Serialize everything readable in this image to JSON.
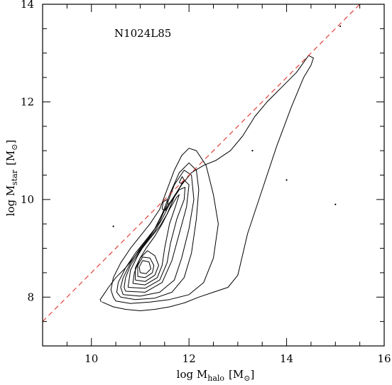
{
  "chart_data": {
    "type": "scatter",
    "plot_style": "contour",
    "annotation": "N1024L85",
    "xlabel": {
      "main": "log M",
      "sub": "halo",
      "unit": "[M",
      "unit_sub": "⊙",
      "unit_close": "]"
    },
    "ylabel": {
      "main": "log M",
      "sub": "star",
      "unit": "[M",
      "unit_sub": "⊙",
      "unit_close": "]"
    },
    "xlim": [
      9,
      16
    ],
    "ylim": [
      7,
      14
    ],
    "x_major_ticks": [
      10,
      12,
      14,
      16
    ],
    "y_major_ticks": [
      8,
      10,
      12,
      14
    ],
    "x_tick_labels": [
      "10",
      "12",
      "14",
      "16"
    ],
    "y_tick_labels": [
      "8",
      "10",
      "12",
      "14"
    ],
    "x_minor_step": 0.5,
    "y_minor_step": 0.5,
    "grid": false,
    "reference_line": {
      "style": "dashed",
      "color": "#e0312a",
      "x": [
        9.0,
        15.5
      ],
      "y": [
        7.5,
        14.0
      ]
    },
    "contours": [
      {
        "level": 1,
        "x": [
          10.22,
          10.45,
          10.7,
          11.0,
          11.3,
          11.6,
          11.9,
          12.2,
          12.5,
          12.8,
          13.0,
          13.2,
          13.5,
          13.8,
          14.1,
          14.35,
          14.5,
          14.55,
          14.45,
          14.2,
          13.9,
          13.6,
          13.35,
          13.1,
          12.85,
          12.55,
          12.3,
          12.05,
          11.85,
          11.65,
          11.45,
          11.3,
          11.1,
          10.9,
          10.7,
          10.5,
          10.35,
          10.25,
          10.18,
          10.2
        ],
        "y": [
          7.9,
          7.8,
          7.75,
          7.72,
          7.75,
          7.8,
          7.88,
          8.0,
          8.1,
          8.2,
          8.45,
          9.3,
          10.2,
          11.1,
          11.9,
          12.5,
          12.75,
          12.9,
          12.95,
          12.6,
          12.3,
          12.0,
          11.7,
          11.3,
          11.0,
          10.8,
          10.7,
          10.55,
          10.3,
          10.0,
          9.7,
          9.4,
          9.1,
          8.85,
          8.6,
          8.4,
          8.2,
          8.05,
          7.95,
          7.9
        ]
      },
      {
        "level": 2,
        "x": [
          10.5,
          10.8,
          11.2,
          11.6,
          12.0,
          12.3,
          12.5,
          12.6,
          12.5,
          12.35,
          12.15,
          12.0,
          11.85,
          11.7,
          11.55,
          11.4,
          11.2,
          11.0,
          10.8,
          10.6,
          10.45,
          10.4,
          10.45,
          10.5
        ],
        "y": [
          7.92,
          7.87,
          7.9,
          7.95,
          8.05,
          8.3,
          8.8,
          9.5,
          10.1,
          10.7,
          11.0,
          11.05,
          10.9,
          10.6,
          10.2,
          9.8,
          9.5,
          9.25,
          9.0,
          8.7,
          8.4,
          8.15,
          8.0,
          7.92
        ]
      },
      {
        "level": 3,
        "x": [
          10.6,
          10.9,
          11.3,
          11.65,
          11.9,
          12.05,
          12.15,
          12.2,
          12.15,
          12.0,
          11.8,
          11.6,
          11.45,
          11.3,
          11.1,
          10.9,
          10.7,
          10.55,
          10.52,
          10.6
        ],
        "y": [
          8.0,
          7.95,
          7.98,
          8.1,
          8.4,
          8.9,
          9.6,
          10.2,
          10.6,
          10.75,
          10.55,
          10.1,
          9.7,
          9.4,
          9.15,
          8.9,
          8.6,
          8.3,
          8.1,
          8.0
        ]
      },
      {
        "level": 4,
        "x": [
          10.65,
          11.0,
          11.4,
          11.7,
          11.85,
          12.0,
          12.1,
          12.05,
          11.9,
          11.7,
          11.55,
          11.4,
          11.2,
          11.0,
          10.8,
          10.65,
          10.6,
          10.65
        ],
        "y": [
          8.05,
          8.02,
          8.1,
          8.35,
          8.8,
          9.4,
          10.0,
          10.5,
          10.6,
          10.3,
          9.9,
          9.55,
          9.25,
          9.0,
          8.7,
          8.4,
          8.2,
          8.05
        ]
      },
      {
        "level": 5,
        "x": [
          10.7,
          11.1,
          11.45,
          11.65,
          11.8,
          11.95,
          12.0,
          11.9,
          11.72,
          11.55,
          11.4,
          11.2,
          11.0,
          10.8,
          10.7,
          10.67,
          10.7
        ],
        "y": [
          8.12,
          8.1,
          8.3,
          8.75,
          9.3,
          9.85,
          10.3,
          10.4,
          10.1,
          9.7,
          9.45,
          9.2,
          8.95,
          8.65,
          8.4,
          8.2,
          8.12
        ]
      },
      {
        "level": 6,
        "x": [
          10.75,
          11.1,
          11.4,
          11.55,
          11.62,
          11.75,
          11.9,
          11.92,
          11.8,
          11.6,
          11.45,
          11.3,
          11.1,
          10.95,
          10.8,
          10.75
        ],
        "y": [
          8.2,
          8.18,
          8.35,
          8.7,
          9.1,
          9.6,
          10.0,
          10.25,
          10.2,
          9.9,
          9.6,
          9.35,
          9.1,
          8.85,
          8.55,
          8.2
        ]
      },
      {
        "level": 7,
        "x": [
          10.85,
          11.1,
          11.35,
          11.45,
          11.5,
          11.6,
          11.72,
          11.8,
          11.75,
          11.6,
          11.45,
          11.3,
          11.12,
          11.0,
          10.88,
          10.85
        ],
        "y": [
          8.28,
          8.25,
          8.4,
          8.65,
          9.0,
          9.5,
          9.85,
          10.1,
          10.05,
          9.8,
          9.5,
          9.25,
          9.0,
          8.8,
          8.5,
          8.28
        ]
      },
      {
        "level": 8,
        "x": [
          10.9,
          11.1,
          11.3,
          11.38,
          11.3,
          11.15,
          11.0,
          10.9,
          10.9
        ],
        "y": [
          8.35,
          8.32,
          8.45,
          8.65,
          8.85,
          8.95,
          8.8,
          8.6,
          8.35
        ]
      },
      {
        "level": 9,
        "x": [
          10.95,
          11.1,
          11.25,
          11.28,
          11.2,
          11.05,
          10.95,
          10.95
        ],
        "y": [
          8.42,
          8.4,
          8.5,
          8.65,
          8.8,
          8.82,
          8.65,
          8.42
        ]
      },
      {
        "level": 10,
        "x": [
          11.0,
          11.12,
          11.22,
          11.18,
          11.05,
          10.98,
          11.0
        ],
        "y": [
          8.5,
          8.48,
          8.58,
          8.72,
          8.75,
          8.62,
          8.5
        ]
      },
      {
        "level": 11,
        "x": [
          11.45,
          11.52,
          11.58,
          11.55,
          11.47,
          11.45
        ],
        "y": [
          9.8,
          9.78,
          9.9,
          10.0,
          9.95,
          9.8
        ]
      },
      {
        "level": 12,
        "x": [
          11.8,
          11.86,
          11.9,
          11.86,
          11.8
        ],
        "y": [
          10.35,
          10.32,
          10.4,
          10.47,
          10.35
        ]
      }
    ],
    "outlier_points": [
      {
        "x": 10.45,
        "y": 9.45
      },
      {
        "x": 13.3,
        "y": 11.0
      },
      {
        "x": 14.0,
        "y": 10.4
      },
      {
        "x": 15.0,
        "y": 9.9
      },
      {
        "x": 15.1,
        "y": 13.55
      }
    ]
  }
}
